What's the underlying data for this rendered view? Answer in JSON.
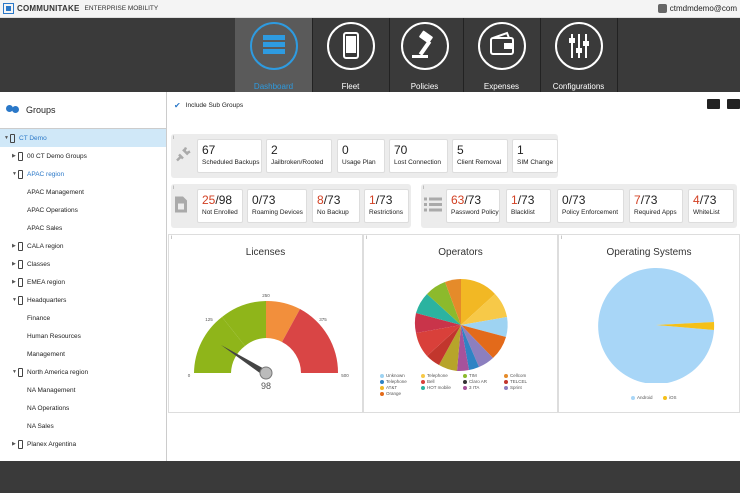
{
  "header": {
    "brand": "COMMUNITAKE",
    "brand_sub": "ENTERPRISE MOBILITY",
    "user": "ctmdmdemo@com"
  },
  "nav": [
    {
      "label": "Dashboard",
      "icon": "dashboard-icon",
      "active": true
    },
    {
      "label": "Fleet",
      "icon": "phone-icon"
    },
    {
      "label": "Policies",
      "icon": "gavel-icon"
    },
    {
      "label": "Expenses",
      "icon": "wallet-icon"
    },
    {
      "label": "Configurations",
      "icon": "sliders-icon"
    }
  ],
  "sidebar": {
    "title": "Groups",
    "items": [
      {
        "label": "CT Demo",
        "selected": true,
        "blue": true
      },
      {
        "label": "00 CT Demo Groups"
      },
      {
        "label": "APAC region",
        "blue": true
      },
      {
        "label": "APAC Management"
      },
      {
        "label": "APAC Operations"
      },
      {
        "label": "APAC Sales"
      },
      {
        "label": "CALA region"
      },
      {
        "label": "Classes"
      },
      {
        "label": "EMEA region"
      },
      {
        "label": "Headquarters"
      },
      {
        "label": "Finance"
      },
      {
        "label": "Human Resources"
      },
      {
        "label": "Management"
      },
      {
        "label": "North America region"
      },
      {
        "label": "NA Management"
      },
      {
        "label": "NA Operations"
      },
      {
        "label": "NA Sales"
      },
      {
        "label": "Planex Argentina"
      }
    ]
  },
  "toolbar": {
    "include_sub_groups": "Include Sub Groups"
  },
  "stats_row1": [
    {
      "value": "67",
      "label": "Scheduled Backups"
    },
    {
      "value": "2",
      "label": "Jailbroken/Rooted"
    },
    {
      "value": "0",
      "label": "Usage Plan"
    },
    {
      "value": "70",
      "label": "Lost Connection"
    },
    {
      "value": "5",
      "label": "Client Removal"
    },
    {
      "value": "1",
      "label": "SIM Change"
    }
  ],
  "stats_row2a": [
    {
      "value": "25",
      "total": "/98",
      "label": "Not Enrolled",
      "red": true
    },
    {
      "value": "0",
      "total": "/73",
      "label": "Roaming Devices",
      "red": false
    },
    {
      "value": "8",
      "total": "/73",
      "label": "No Backup",
      "red": true
    },
    {
      "value": "1",
      "total": "/73",
      "label": "Restrictions",
      "red": true
    }
  ],
  "stats_row2b": [
    {
      "value": "63",
      "total": "/73",
      "label": "Password Policy",
      "red": true
    },
    {
      "value": "1",
      "total": "/73",
      "label": "Blacklist",
      "red": true
    },
    {
      "value": "0",
      "total": "/73",
      "label": "Policy Enforcement",
      "red": false
    },
    {
      "value": "7",
      "total": "/73",
      "label": "Required Apps",
      "red": true
    },
    {
      "value": "4",
      "total": "/73",
      "label": "WhiteList",
      "red": true
    }
  ],
  "licenses": {
    "title": "Licenses",
    "value": "98",
    "ticks": [
      "0",
      "125",
      "250",
      "375",
      "500"
    ]
  },
  "operators": {
    "title": "Operators",
    "legend": [
      "Unknown",
      "Telephone",
      "AT&T",
      "Orange",
      "Telephone",
      "Bell",
      "HOT mobile",
      "TIM",
      "Claro AR",
      "3 ITA",
      "Cellcom",
      "TELCEL",
      "Sprint"
    ],
    "legend_colors": [
      "#9ed3f2",
      "#2f83c4",
      "#f2b824",
      "#e36a1a",
      "#f7c948",
      "#d9403a",
      "#2bb3a0",
      "#8cba2c",
      "#333333",
      "#a6529b",
      "#e58b2a",
      "#c2362d",
      "#8c7fbf"
    ]
  },
  "os": {
    "title": "Operating Systems",
    "legend": [
      "Android",
      "iOS"
    ],
    "colors": [
      "#a8d6f7",
      "#f5c018"
    ],
    "values": [
      97,
      3
    ]
  }
}
